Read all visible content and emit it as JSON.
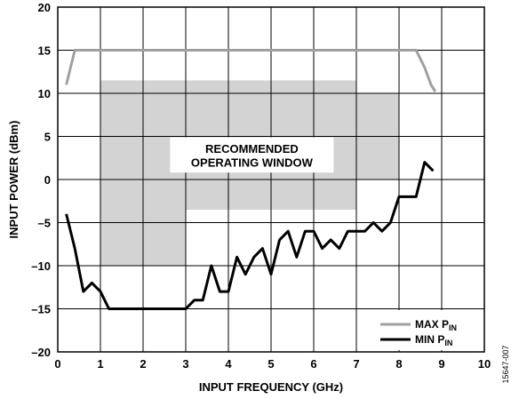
{
  "chart_data": {
    "type": "line",
    "xlabel": "INPUT FREQUENCY (GHz)",
    "ylabel": "INPUT POWER (dBm)",
    "xlim": [
      0,
      10
    ],
    "ylim": [
      -20,
      20
    ],
    "x_ticks": [
      0,
      1,
      2,
      3,
      4,
      5,
      6,
      7,
      8,
      9,
      10
    ],
    "y_ticks": [
      -20,
      -15,
      -10,
      -5,
      0,
      5,
      10,
      15,
      20
    ],
    "x_tick_labels": [
      "0",
      "1",
      "2",
      "3",
      "4",
      "5",
      "6",
      "7",
      "8",
      "9",
      "10"
    ],
    "y_tick_labels": [
      "–20",
      "–15",
      "–10",
      "–5",
      "0",
      "5",
      "10",
      "15",
      "20"
    ],
    "grid": true,
    "legend_position": "bottom-right",
    "annotation": [
      "RECOMMENDED",
      "OPERATING WINDOW"
    ],
    "figure_id": "15647-007",
    "recommended_window": {
      "color": "#d3d3d3",
      "outline": [
        [
          1.0,
          -10
        ],
        [
          1.0,
          11.5
        ],
        [
          6.0,
          11.5
        ],
        [
          7.0,
          11.5
        ],
        [
          7.0,
          10
        ],
        [
          8.0,
          10
        ],
        [
          8.0,
          0
        ],
        [
          7.0,
          0
        ],
        [
          7.0,
          -3.5
        ],
        [
          3.0,
          -3.5
        ],
        [
          3.0,
          -10
        ]
      ]
    },
    "series": [
      {
        "name": "MAX P",
        "name_sub": "IN",
        "color": "#a0a0a0",
        "x": [
          0.2,
          0.4,
          1.0,
          2.0,
          3.0,
          4.0,
          5.0,
          6.0,
          7.0,
          8.0,
          8.4,
          8.6,
          8.75,
          8.85
        ],
        "y": [
          11,
          15,
          15,
          15,
          15,
          15,
          15,
          15,
          15,
          15,
          15,
          13,
          11,
          10.2
        ]
      },
      {
        "name": "MIN P",
        "name_sub": "IN",
        "color": "#000000",
        "x": [
          0.2,
          0.4,
          0.6,
          0.8,
          1.0,
          1.2,
          1.5,
          2.0,
          2.5,
          3.0,
          3.2,
          3.4,
          3.6,
          3.8,
          4.0,
          4.2,
          4.4,
          4.6,
          4.8,
          5.0,
          5.2,
          5.4,
          5.6,
          5.8,
          6.0,
          6.2,
          6.4,
          6.6,
          6.8,
          7.0,
          7.2,
          7.4,
          7.6,
          7.8,
          8.0,
          8.2,
          8.4,
          8.6,
          8.8
        ],
        "y": [
          -4,
          -8,
          -13,
          -12,
          -13,
          -15,
          -15,
          -15,
          -15,
          -15,
          -14,
          -14,
          -10,
          -13,
          -13,
          -9,
          -11,
          -9,
          -8,
          -11,
          -7,
          -6,
          -9,
          -6,
          -6,
          -8,
          -7,
          -8,
          -6,
          -6,
          -6,
          -5,
          -6,
          -5,
          -2,
          -2,
          -2,
          2,
          1
        ]
      }
    ]
  }
}
